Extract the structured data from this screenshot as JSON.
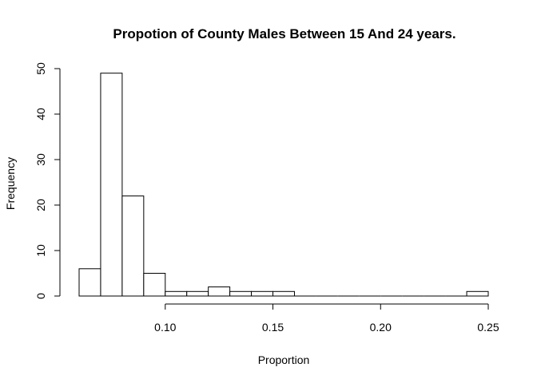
{
  "chart_data": {
    "type": "bar",
    "title": "Propotion of County Males Between 15 And 24 years.",
    "xlabel": "Proportion",
    "ylabel": "Frequency",
    "bin_width": 0.01,
    "bins": [
      {
        "x0": 0.06,
        "x1": 0.07,
        "count": 6
      },
      {
        "x0": 0.07,
        "x1": 0.08,
        "count": 49
      },
      {
        "x0": 0.08,
        "x1": 0.09,
        "count": 22
      },
      {
        "x0": 0.09,
        "x1": 0.1,
        "count": 5
      },
      {
        "x0": 0.1,
        "x1": 0.11,
        "count": 1
      },
      {
        "x0": 0.11,
        "x1": 0.12,
        "count": 1
      },
      {
        "x0": 0.12,
        "x1": 0.13,
        "count": 2
      },
      {
        "x0": 0.13,
        "x1": 0.14,
        "count": 1
      },
      {
        "x0": 0.14,
        "x1": 0.15,
        "count": 1
      },
      {
        "x0": 0.15,
        "x1": 0.16,
        "count": 1
      },
      {
        "x0": 0.16,
        "x1": 0.17,
        "count": 0
      },
      {
        "x0": 0.17,
        "x1": 0.18,
        "count": 0
      },
      {
        "x0": 0.18,
        "x1": 0.19,
        "count": 0
      },
      {
        "x0": 0.19,
        "x1": 0.2,
        "count": 0
      },
      {
        "x0": 0.2,
        "x1": 0.21,
        "count": 0
      },
      {
        "x0": 0.21,
        "x1": 0.22,
        "count": 0
      },
      {
        "x0": 0.22,
        "x1": 0.23,
        "count": 0
      },
      {
        "x0": 0.23,
        "x1": 0.24,
        "count": 0
      },
      {
        "x0": 0.24,
        "x1": 0.25,
        "count": 1
      }
    ],
    "xlim": [
      0.06,
      0.25
    ],
    "ylim": [
      0,
      50
    ],
    "x_ticks": [
      0.1,
      0.15,
      0.2,
      0.25
    ],
    "x_tick_labels": [
      "0.10",
      "0.15",
      "0.20",
      "0.25"
    ],
    "y_ticks": [
      0,
      10,
      20,
      30,
      40,
      50
    ],
    "y_tick_labels": [
      "0",
      "10",
      "20",
      "30",
      "40",
      "50"
    ],
    "grid": false,
    "colors": {
      "bar_fill": "#ffffff",
      "bar_stroke": "#000000"
    }
  }
}
